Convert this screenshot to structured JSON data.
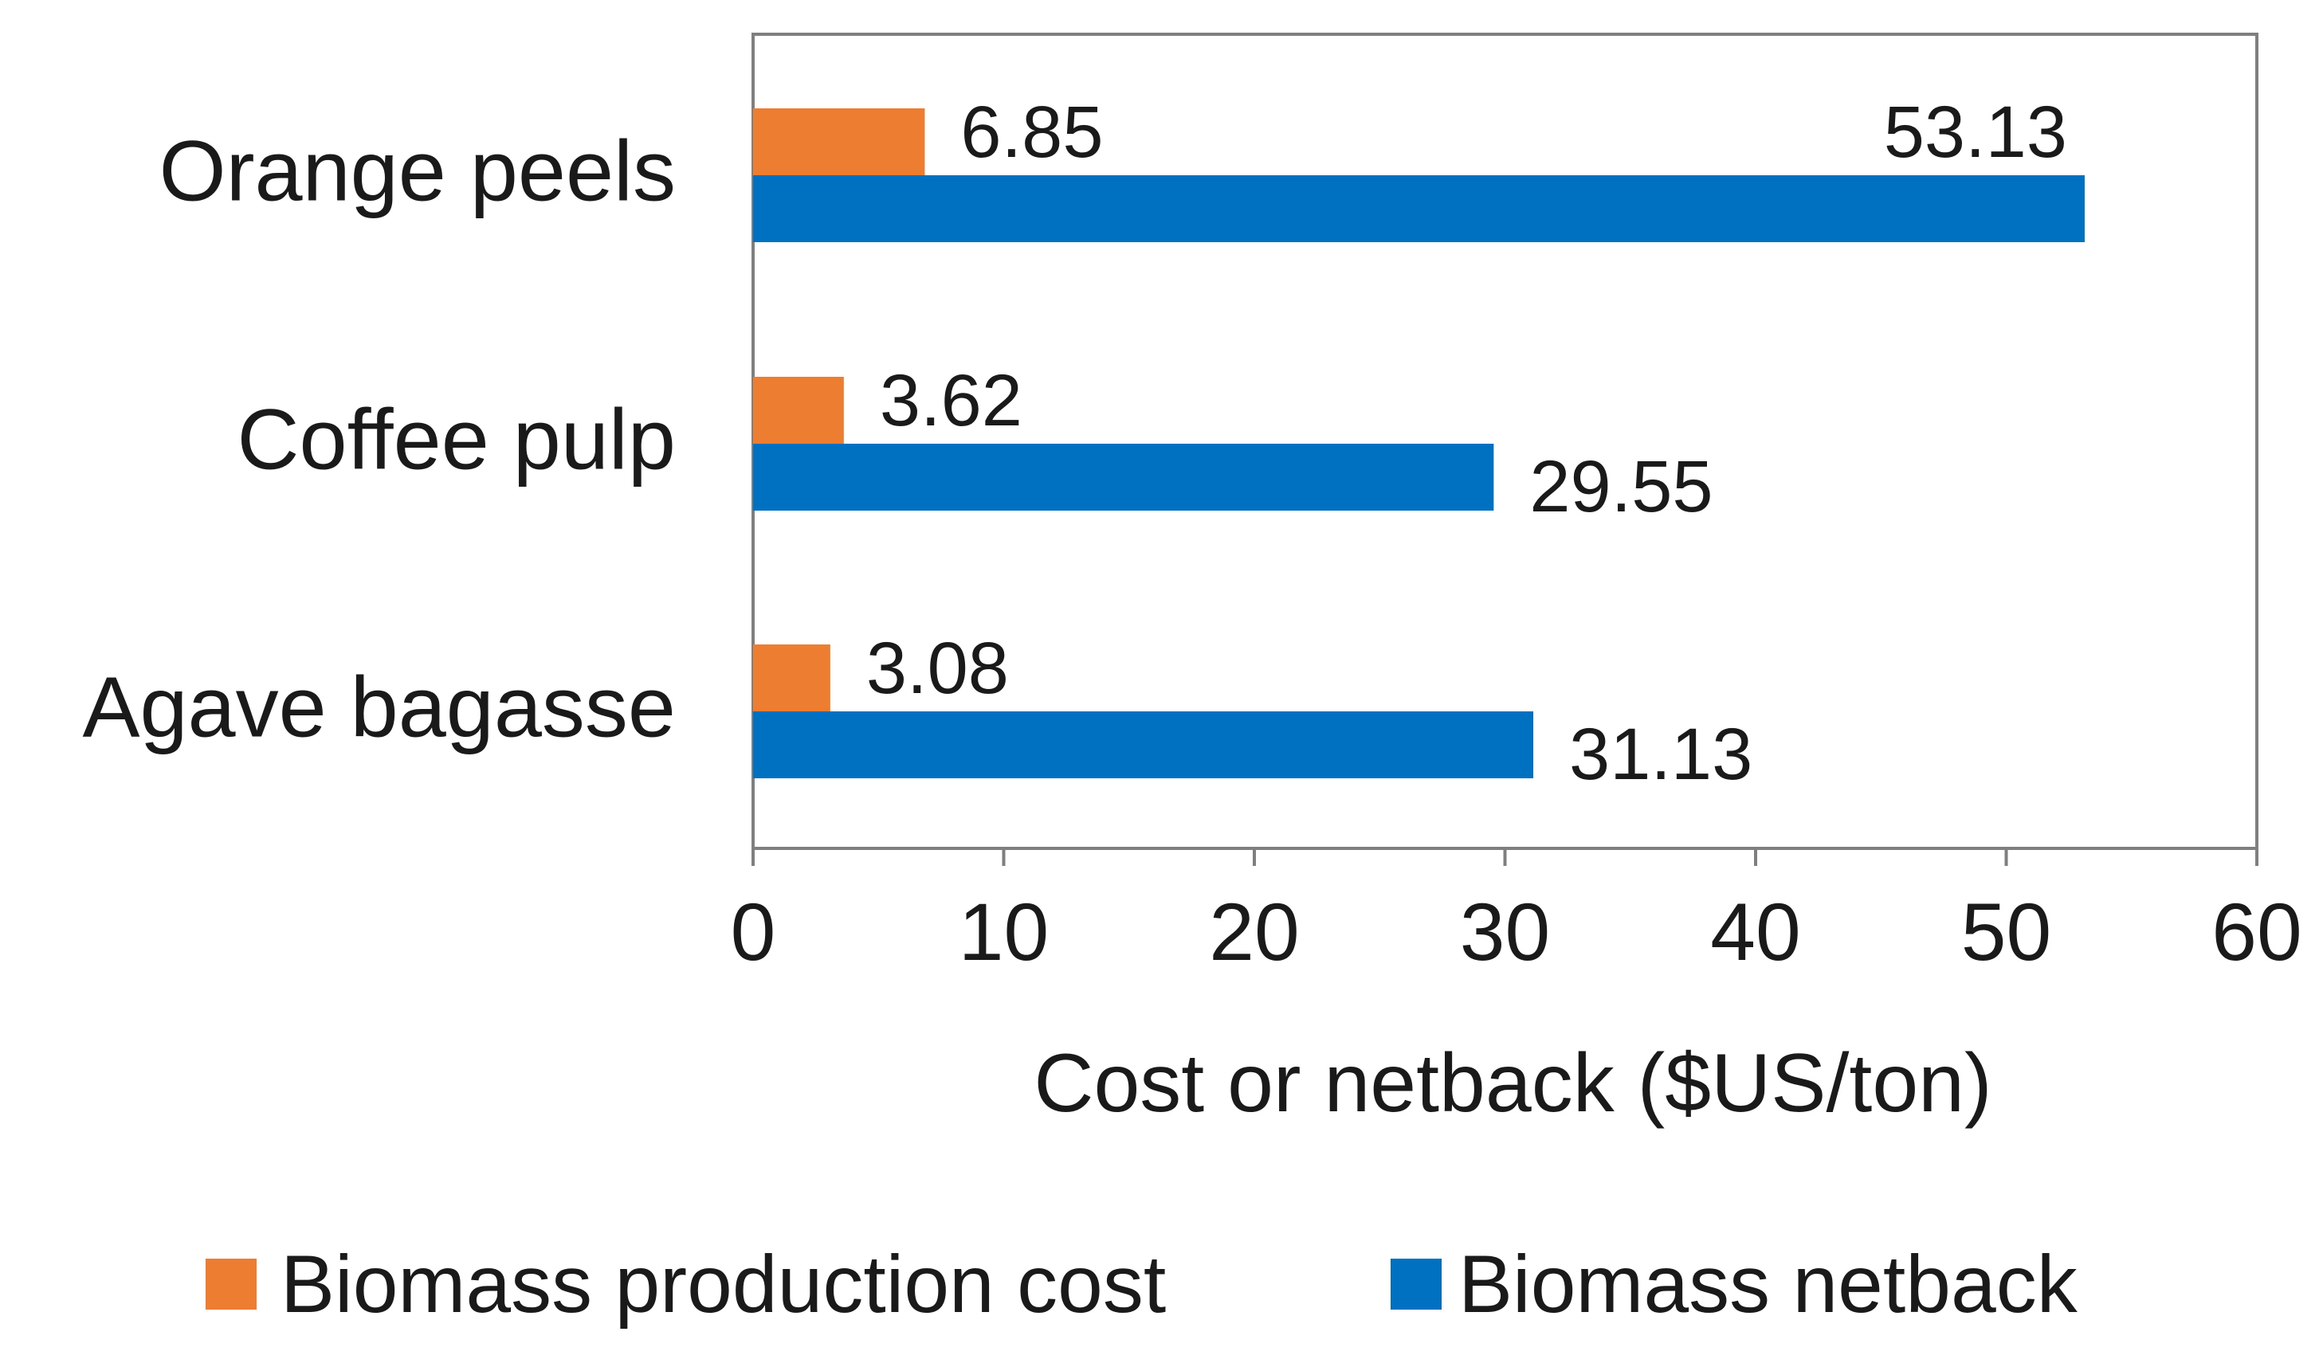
{
  "chart_data": {
    "type": "bar",
    "orientation": "horizontal",
    "title": "",
    "categories": [
      "Orange peels",
      "Coffee pulp",
      "Agave bagasse"
    ],
    "series": [
      {
        "name": "Biomass production cost",
        "color": "#ED7D31",
        "values": [
          6.85,
          3.62,
          3.08
        ],
        "labels": [
          "6.85",
          "3.62",
          "3.08"
        ]
      },
      {
        "name": "Biomass netback",
        "color": "#0070C0",
        "values": [
          53.13,
          29.55,
          31.13
        ],
        "labels": [
          "53.13",
          "29.55",
          "31.13"
        ]
      }
    ],
    "xlabel": "Cost or netback ($US/ton)",
    "ylabel": "",
    "xlim": [
      0,
      60
    ],
    "xticks": [
      0,
      10,
      20,
      30,
      40,
      50,
      60
    ],
    "grid": false,
    "legend_position": "bottom"
  }
}
